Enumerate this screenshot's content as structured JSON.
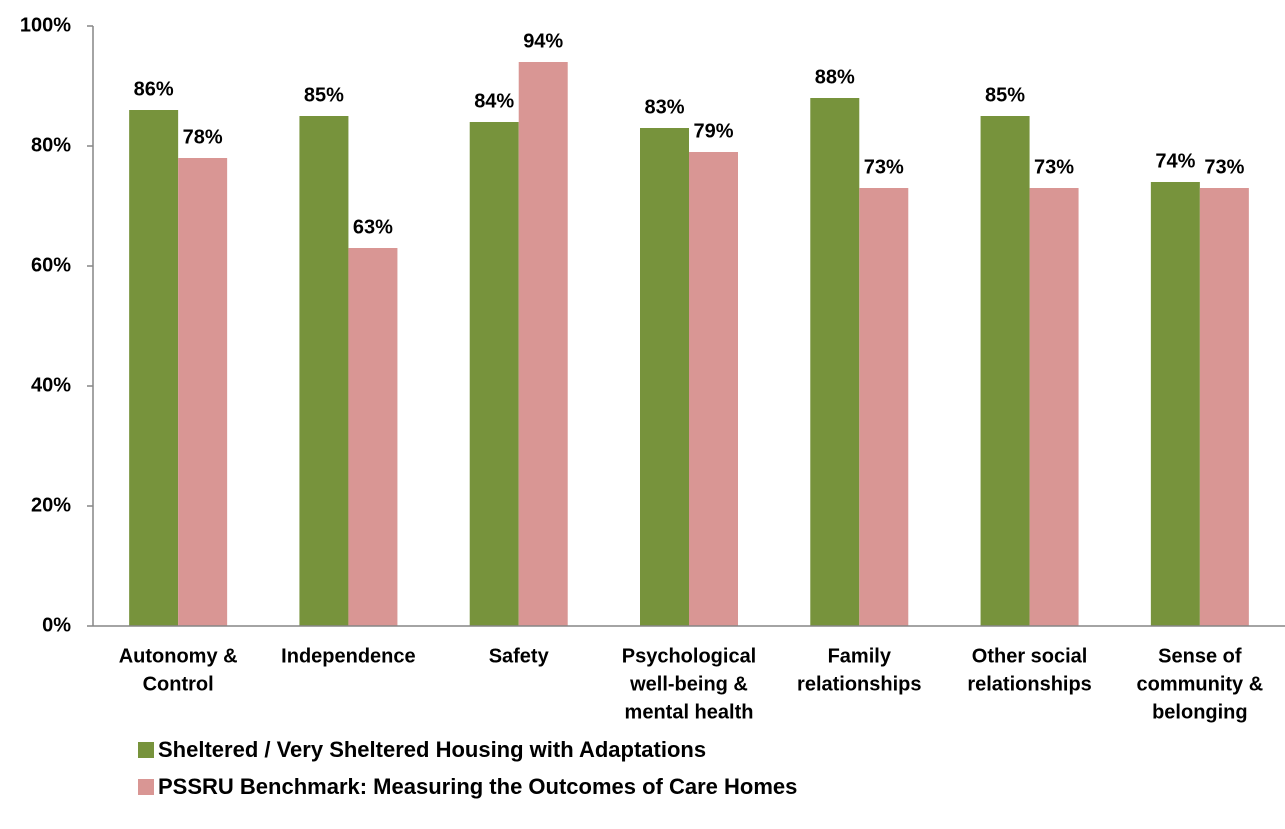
{
  "chart_data": {
    "type": "bar",
    "categories": [
      [
        "Autonomy &",
        "Control"
      ],
      [
        "Independence"
      ],
      [
        "Safety"
      ],
      [
        "Psychological",
        "well-being &",
        "mental health"
      ],
      [
        "Family",
        "relationships"
      ],
      [
        "Other social",
        "relationships"
      ],
      [
        "Sense of",
        "community &",
        "belonging"
      ]
    ],
    "series": [
      {
        "name": "Sheltered / Very Sheltered Housing with Adaptations",
        "color": "#77933c",
        "values": [
          86,
          85,
          84,
          83,
          88,
          85,
          74
        ],
        "value_labels": [
          "86%",
          "85%",
          "84%",
          "83%",
          "88%",
          "85%",
          "74%"
        ]
      },
      {
        "name": "PSSRU Benchmark: Measuring the Outcomes of Care Homes",
        "color": "#d99694",
        "values": [
          78,
          63,
          94,
          79,
          73,
          73,
          73
        ],
        "value_labels": [
          "78%",
          "63%",
          "94%",
          "79%",
          "73%",
          "73%",
          "73%"
        ]
      }
    ],
    "ylim": [
      0,
      100
    ],
    "yticks": [
      {
        "value": 0,
        "label": "0%"
      },
      {
        "value": 20,
        "label": "20%"
      },
      {
        "value": 40,
        "label": "40%"
      },
      {
        "value": 60,
        "label": "60%"
      },
      {
        "value": 80,
        "label": "80%"
      },
      {
        "value": 100,
        "label": "100%"
      }
    ],
    "legend": "bottom-left"
  }
}
